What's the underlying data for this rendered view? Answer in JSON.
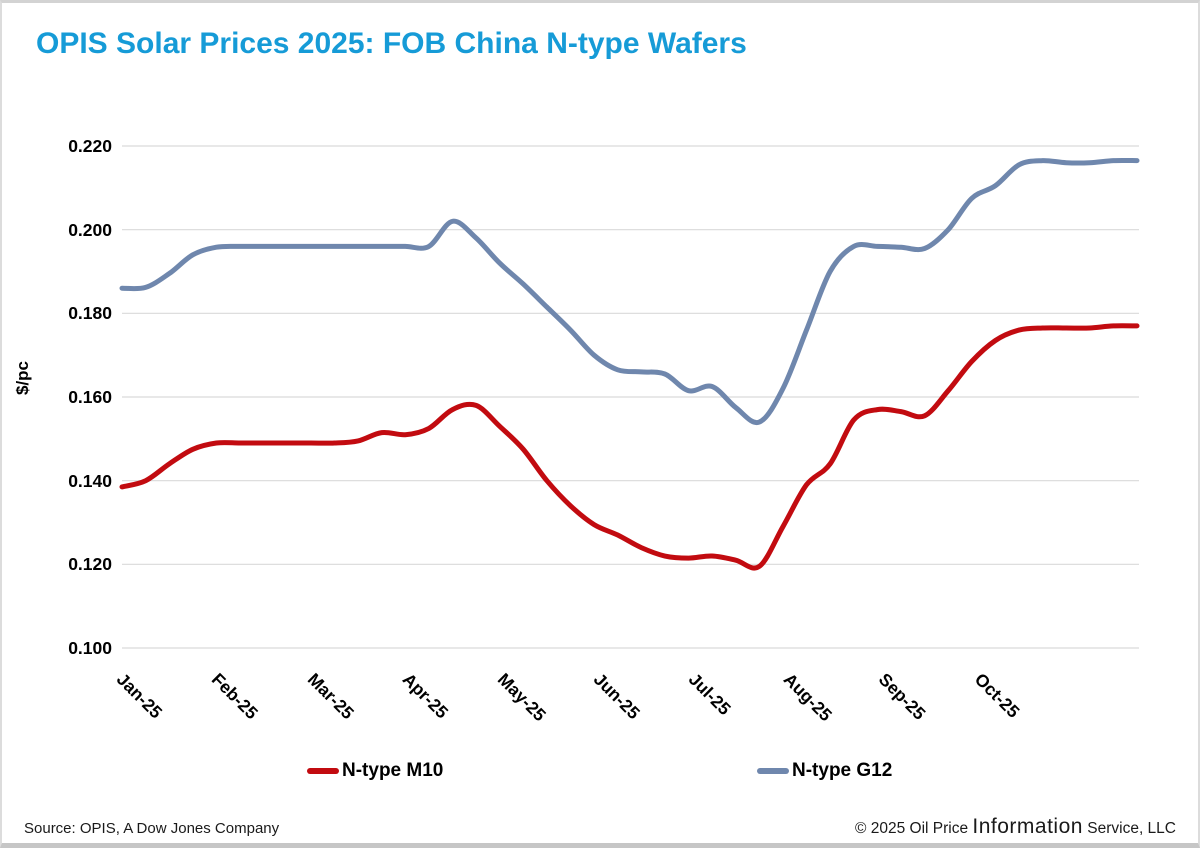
{
  "title": "OPIS Solar Prices 2025: FOB China N-type Wafers",
  "title_color": "#169bd7",
  "footer": {
    "source": "Source: OPIS, A Dow Jones Company",
    "copyright_prefix": "© 2025 Oil Price ",
    "copyright_brand": "Information",
    "copyright_suffix": " Service, LLC"
  },
  "chart_data": {
    "type": "line",
    "title": "OPIS Solar Prices 2025: FOB China N-type Wafers",
    "xlabel": "",
    "ylabel": "$/pc",
    "ylim": [
      0.1,
      0.22
    ],
    "ytick_step": 0.02,
    "ytick_labels": [
      "0.220",
      "0.200",
      "0.180",
      "0.160",
      "0.140",
      "0.120",
      "0.100"
    ],
    "categories": [
      "Jan-25",
      "Feb-25",
      "Mar-25",
      "Apr-25",
      "May-25",
      "Jun-25",
      "Jul-25",
      "Aug-25",
      "Sep-25",
      "Oct-25"
    ],
    "x_resolution": "weekly",
    "grid": "horizontal",
    "gridline_color": "#d9d9d9",
    "legend_position": "bottom",
    "series": [
      {
        "name": "N-type M10",
        "color": "#c20b10",
        "values": [
          0.1385,
          0.14,
          0.144,
          0.1475,
          0.149,
          0.149,
          0.149,
          0.149,
          0.149,
          0.149,
          0.1495,
          0.1515,
          0.151,
          0.1525,
          0.157,
          0.158,
          0.153,
          0.1475,
          0.14,
          0.134,
          0.1295,
          0.127,
          0.124,
          0.122,
          0.1215,
          0.122,
          0.121,
          0.1195,
          0.129,
          0.139,
          0.144,
          0.1545,
          0.157,
          0.1565,
          0.1555,
          0.1615,
          0.1685,
          0.1735,
          0.176,
          0.1765,
          0.1765,
          0.1765,
          0.177,
          0.177
        ]
      },
      {
        "name": "N-type G12",
        "color": "#6f87ad",
        "values": [
          0.186,
          0.1862,
          0.1895,
          0.194,
          0.1958,
          0.196,
          0.196,
          0.196,
          0.196,
          0.196,
          0.196,
          0.196,
          0.196,
          0.196,
          0.202,
          0.198,
          0.192,
          0.187,
          0.1815,
          0.176,
          0.17,
          0.1665,
          0.166,
          0.1655,
          0.1615,
          0.1625,
          0.1575,
          0.154,
          0.162,
          0.176,
          0.19,
          0.196,
          0.196,
          0.1958,
          0.1955,
          0.2,
          0.2075,
          0.2105,
          0.2155,
          0.2165,
          0.216,
          0.216,
          0.2165,
          0.2165
        ]
      }
    ]
  }
}
